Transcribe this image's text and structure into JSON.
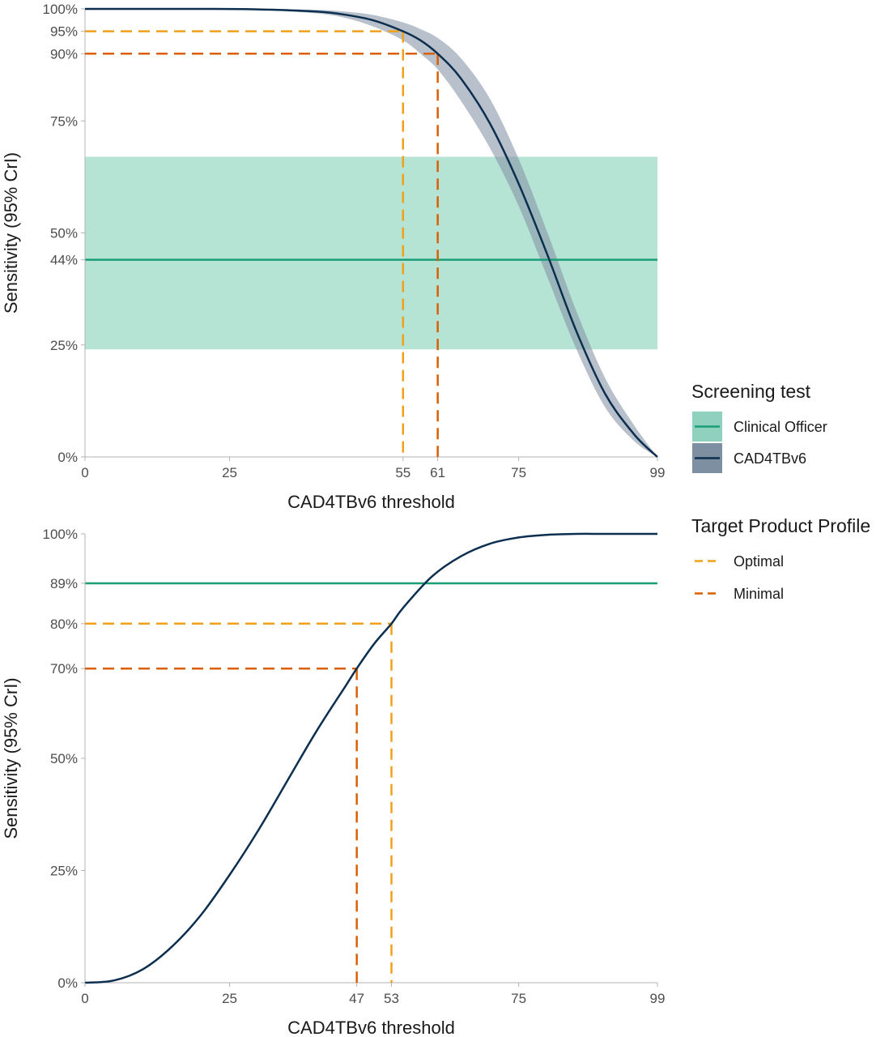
{
  "colors": {
    "clinical_officer": "#1a9e77",
    "clinical_band": "#b5e3d4",
    "cad4tb": "#0d2f4f",
    "cad4tb_band": "#8796a8",
    "optimal": "#f0a01a",
    "minimal": "#d95f02",
    "axis": "#b3b3b3"
  },
  "legend": {
    "screening_title": "Screening test",
    "screening_items": [
      "Clinical Officer",
      "CAD4TBv6"
    ],
    "tpp_title": "Target Product Profile",
    "tpp_items": [
      "Optimal",
      "Minimal"
    ]
  },
  "chart_data": [
    {
      "type": "line",
      "xlabel": "CAD4TBv6 threshold",
      "ylabel": "Sensitivity (95% CrI)",
      "xlim": [
        0,
        99
      ],
      "ylim": [
        0,
        100
      ],
      "x_ticks": [
        0,
        25,
        55,
        61,
        75,
        99
      ],
      "y_ticks": [
        0,
        25,
        44,
        50,
        75,
        90,
        95,
        100
      ],
      "y_tick_labels": [
        "0%",
        "25%",
        "44%",
        "50%",
        "75%",
        "90%",
        "95%",
        "100%"
      ],
      "grid": false,
      "series": [
        {
          "name": "CAD4TBv6",
          "x": [
            0,
            10,
            20,
            30,
            40,
            45,
            50,
            55,
            58,
            61,
            65,
            70,
            75,
            80,
            85,
            90,
            95,
            99
          ],
          "y": [
            100,
            100,
            100,
            99.9,
            99.4,
            98.7,
            97.4,
            95,
            93,
            90,
            84.5,
            74.5,
            61,
            45,
            28,
            14,
            5,
            0
          ],
          "lower": [
            100,
            100,
            100,
            99.8,
            99.0,
            98.0,
            96.0,
            93,
            90,
            86.5,
            79.5,
            69,
            56,
            40,
            24,
            11,
            3.5,
            0
          ],
          "upper": [
            100,
            100,
            100,
            100,
            99.8,
            99.4,
            98.6,
            97,
            95.5,
            93.5,
            89,
            80,
            66.5,
            50,
            32.5,
            17.5,
            7,
            0
          ]
        },
        {
          "name": "Clinical Officer",
          "value": 44,
          "lower": 24,
          "upper": 67
        }
      ],
      "reference_lines": [
        {
          "profile": "Optimal",
          "sensitivity": 95,
          "threshold": 55
        },
        {
          "profile": "Minimal",
          "sensitivity": 90,
          "threshold": 61
        }
      ]
    },
    {
      "type": "line",
      "xlabel": "CAD4TBv6 threshold",
      "ylabel": "Sensitivity (95% CrI)",
      "xlim": [
        0,
        99
      ],
      "ylim": [
        0,
        100
      ],
      "x_ticks": [
        0,
        25,
        47,
        53,
        75,
        99
      ],
      "y_ticks": [
        0,
        25,
        50,
        70,
        80,
        89,
        100
      ],
      "y_tick_labels": [
        "0%",
        "25%",
        "50%",
        "70%",
        "80%",
        "89%",
        "100%"
      ],
      "grid": false,
      "series": [
        {
          "name": "CAD4TBv6",
          "x": [
            0,
            5,
            10,
            15,
            20,
            25,
            30,
            35,
            40,
            45,
            47,
            50,
            53,
            55,
            60,
            65,
            70,
            75,
            80,
            85,
            90,
            99
          ],
          "y": [
            0,
            0.5,
            3,
            8,
            15,
            24,
            34,
            45,
            56,
            66,
            70,
            75.5,
            80,
            83.5,
            90.5,
            95,
            97.8,
            99.2,
            99.8,
            100,
            100,
            100
          ]
        },
        {
          "name": "Clinical Officer",
          "value": 89
        }
      ],
      "reference_lines": [
        {
          "profile": "Optimal",
          "sensitivity": 80,
          "threshold": 53
        },
        {
          "profile": "Minimal",
          "sensitivity": 70,
          "threshold": 47
        }
      ]
    }
  ]
}
